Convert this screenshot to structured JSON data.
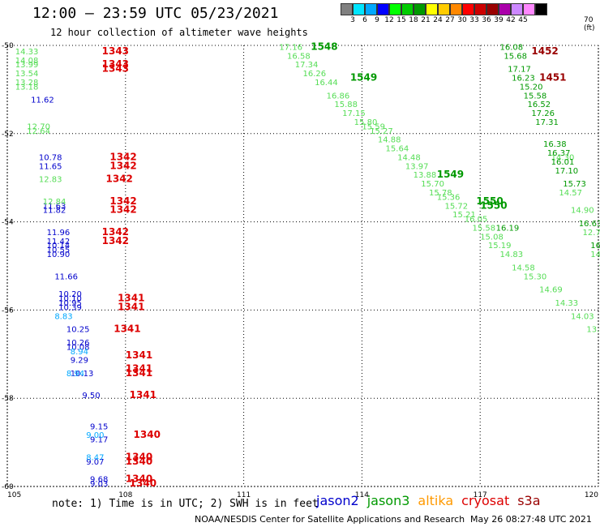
{
  "header": {
    "title": "12:00 — 23:59 UTC 05/23/2021",
    "subtitle": "12 hour collection of altimeter wave heights"
  },
  "legend": {
    "unit": "70 (ft)",
    "ticks": [
      "3",
      "6",
      "9",
      "12",
      "15",
      "18",
      "21",
      "24",
      "27",
      "30",
      "33",
      "36",
      "39",
      "42",
      "45"
    ],
    "colors": [
      "#808080",
      "#00e5ff",
      "#00a8ff",
      "#0000ff",
      "#00ff00",
      "#00cc00",
      "#009900",
      "#ffff00",
      "#ffcc00",
      "#ff8800",
      "#ff0000",
      "#cc0000",
      "#990000",
      "#aa00aa",
      "#cc88ff",
      "#ff88ff",
      "#000000"
    ]
  },
  "map": {
    "lon_labels": [
      "105",
      "108",
      "111",
      "114",
      "117",
      "120"
    ],
    "lat_labels": [
      "-50",
      "-52",
      "-54",
      "-56",
      "-58",
      "-60"
    ]
  },
  "footer": {
    "note": "note: 1) Time is in UTC; 2) SWH is in feet",
    "missions": [
      {
        "name": "jason2",
        "color": "#0000cc"
      },
      {
        "name": "jason3",
        "color": "#009900"
      },
      {
        "name": "altika",
        "color": "#ff9900"
      },
      {
        "name": "cryosat",
        "color": "#dd0000"
      },
      {
        "name": "s3a",
        "color": "#990000"
      }
    ],
    "credit": "NOAA/NESDIS Center for Satellite Applications and Research",
    "timestamp": "May 26 08:27:48 UTC 2021"
  },
  "chart_data": {
    "type": "scatter",
    "xlim": [
      105,
      120
    ],
    "ylim": [
      -60,
      -50
    ],
    "grid": true,
    "series": [
      {
        "name": "jason2",
        "color": "#0000cc",
        "points": [
          {
            "x": 105.6,
            "y": -51.3,
            "label": "11.62"
          },
          {
            "x": 105.8,
            "y": -52.6,
            "label": "10.78"
          },
          {
            "x": 105.8,
            "y": -52.8,
            "label": "11.65"
          },
          {
            "x": 105.9,
            "y": -53.7,
            "label": "11.63"
          },
          {
            "x": 105.9,
            "y": -53.8,
            "label": "11.82"
          },
          {
            "x": 106.0,
            "y": -54.3,
            "label": "11.96"
          },
          {
            "x": 106.0,
            "y": -54.5,
            "label": "11.42"
          },
          {
            "x": 106.0,
            "y": -54.6,
            "label": "10.14"
          },
          {
            "x": 106.0,
            "y": -54.7,
            "label": "10.55"
          },
          {
            "x": 106.0,
            "y": -54.8,
            "label": "10.90"
          },
          {
            "x": 106.2,
            "y": -55.3,
            "label": "11.66"
          },
          {
            "x": 106.3,
            "y": -55.7,
            "label": "10.20"
          },
          {
            "x": 106.3,
            "y": -55.8,
            "label": "10.10"
          },
          {
            "x": 106.3,
            "y": -55.9,
            "label": "10.95"
          },
          {
            "x": 106.3,
            "y": -56.0,
            "label": "10.39"
          },
          {
            "x": 106.5,
            "y": -56.5,
            "label": "10.25"
          },
          {
            "x": 106.5,
            "y": -56.8,
            "label": "10.26"
          },
          {
            "x": 106.5,
            "y": -56.9,
            "label": "10.08"
          },
          {
            "x": 106.6,
            "y": -57.2,
            "label": "9.29"
          },
          {
            "x": 106.6,
            "y": -57.5,
            "label": "10.13"
          },
          {
            "x": 106.9,
            "y": -58.0,
            "label": "9.50"
          },
          {
            "x": 107.1,
            "y": -58.7,
            "label": "9.15"
          },
          {
            "x": 107.1,
            "y": -59.0,
            "label": "9.17"
          },
          {
            "x": 107.0,
            "y": -59.5,
            "label": "9.07"
          },
          {
            "x": 107.1,
            "y": -59.9,
            "label": "9.68"
          },
          {
            "x": 107.1,
            "y": -60.0,
            "label": "9.03"
          }
        ]
      },
      {
        "name": "altika",
        "color": "#00a8ff",
        "points": [
          {
            "x": 106.2,
            "y": -56.2,
            "label": "8.83"
          },
          {
            "x": 106.6,
            "y": -57.0,
            "label": "8.94"
          },
          {
            "x": 106.5,
            "y": -57.5,
            "label": "8.94"
          },
          {
            "x": 107.0,
            "y": -58.9,
            "label": "9.00"
          },
          {
            "x": 107.0,
            "y": -59.4,
            "label": "8.47"
          }
        ]
      },
      {
        "name": "jason3-light",
        "color": "#55dd55",
        "points": [
          {
            "x": 105.2,
            "y": -50.2,
            "label": "14.33"
          },
          {
            "x": 105.2,
            "y": -50.4,
            "label": "14.08"
          },
          {
            "x": 105.2,
            "y": -50.5,
            "label": "13.99"
          },
          {
            "x": 105.2,
            "y": -50.7,
            "label": "13.54"
          },
          {
            "x": 105.2,
            "y": -50.9,
            "label": "13.28"
          },
          {
            "x": 105.2,
            "y": -51.0,
            "label": "13.18"
          },
          {
            "x": 105.5,
            "y": -51.9,
            "label": "12.70"
          },
          {
            "x": 105.5,
            "y": -52.0,
            "label": "12.64"
          },
          {
            "x": 105.8,
            "y": -53.1,
            "label": "12.83"
          },
          {
            "x": 105.9,
            "y": -53.6,
            "label": "12.84"
          },
          {
            "x": 111.9,
            "y": -50.1,
            "label": "17.16"
          },
          {
            "x": 112.1,
            "y": -50.3,
            "label": "16.58"
          },
          {
            "x": 112.3,
            "y": -50.5,
            "label": "17.34"
          },
          {
            "x": 112.5,
            "y": -50.7,
            "label": "16.26"
          },
          {
            "x": 112.8,
            "y": -50.9,
            "label": "16.44"
          },
          {
            "x": 113.1,
            "y": -51.2,
            "label": "16.86"
          },
          {
            "x": 113.3,
            "y": -51.4,
            "label": "15.88"
          },
          {
            "x": 113.5,
            "y": -51.6,
            "label": "17.15"
          },
          {
            "x": 113.8,
            "y": -51.8,
            "label": "15.80"
          },
          {
            "x": 114.0,
            "y": -51.9,
            "label": "15.59"
          },
          {
            "x": 114.2,
            "y": -52.0,
            "label": "15.27"
          },
          {
            "x": 114.4,
            "y": -52.2,
            "label": "14.88"
          },
          {
            "x": 114.6,
            "y": -52.4,
            "label": "15.64"
          },
          {
            "x": 114.9,
            "y": -52.6,
            "label": "14.48"
          },
          {
            "x": 115.1,
            "y": -52.8,
            "label": "13.97"
          },
          {
            "x": 115.3,
            "y": -53.0,
            "label": "13.88"
          },
          {
            "x": 115.5,
            "y": -53.2,
            "label": "15.70"
          },
          {
            "x": 115.7,
            "y": -53.4,
            "label": "15.78"
          },
          {
            "x": 115.9,
            "y": -53.5,
            "label": "15.36"
          },
          {
            "x": 116.1,
            "y": -53.7,
            "label": "15.72"
          },
          {
            "x": 116.3,
            "y": -53.9,
            "label": "15.21"
          },
          {
            "x": 116.6,
            "y": -54.0,
            "label": "16.05"
          },
          {
            "x": 116.8,
            "y": -54.2,
            "label": "15.58"
          },
          {
            "x": 117.0,
            "y": -54.4,
            "label": "15.08"
          },
          {
            "x": 117.2,
            "y": -54.6,
            "label": "15.19"
          },
          {
            "x": 117.5,
            "y": -54.8,
            "label": "14.83"
          },
          {
            "x": 117.8,
            "y": -55.1,
            "label": "14.58"
          },
          {
            "x": 118.1,
            "y": -55.3,
            "label": "15.30"
          },
          {
            "x": 118.5,
            "y": -55.6,
            "label": "14.69"
          },
          {
            "x": 118.9,
            "y": -55.9,
            "label": "14.33"
          },
          {
            "x": 119.3,
            "y": -56.2,
            "label": "14.03"
          },
          {
            "x": 119.7,
            "y": -56.5,
            "label": "13.98"
          },
          {
            "x": 118.8,
            "y": -52.6,
            "label": "14.30"
          },
          {
            "x": 119.0,
            "y": -53.4,
            "label": "14.57"
          },
          {
            "x": 119.3,
            "y": -53.8,
            "label": "14.90"
          },
          {
            "x": 119.6,
            "y": -54.3,
            "label": "12.78"
          },
          {
            "x": 119.8,
            "y": -54.8,
            "label": "14.1"
          },
          {
            "x": 120.0,
            "y": -55.1,
            "label": "14."
          }
        ]
      },
      {
        "name": "jason3",
        "color": "#009900",
        "points": [
          {
            "x": 117.5,
            "y": -50.1,
            "label": "16.08"
          },
          {
            "x": 117.6,
            "y": -50.3,
            "label": "15.68"
          },
          {
            "x": 117.7,
            "y": -50.6,
            "label": "17.17"
          },
          {
            "x": 117.8,
            "y": -50.8,
            "label": "16.23"
          },
          {
            "x": 118.0,
            "y": -51.0,
            "label": "15.20"
          },
          {
            "x": 118.1,
            "y": -51.2,
            "label": "15.58"
          },
          {
            "x": 118.2,
            "y": -51.4,
            "label": "16.52"
          },
          {
            "x": 118.3,
            "y": -51.6,
            "label": "17.26"
          },
          {
            "x": 118.4,
            "y": -51.8,
            "label": "17.31"
          },
          {
            "x": 118.6,
            "y": -52.3,
            "label": "16.38"
          },
          {
            "x": 118.7,
            "y": -52.5,
            "label": "16.37"
          },
          {
            "x": 118.8,
            "y": -52.7,
            "label": "16.01"
          },
          {
            "x": 118.9,
            "y": -52.9,
            "label": "17.10"
          },
          {
            "x": 119.1,
            "y": -53.2,
            "label": "15.73"
          },
          {
            "x": 119.5,
            "y": -54.1,
            "label": "16.63"
          },
          {
            "x": 119.8,
            "y": -54.6,
            "label": "16.28"
          },
          {
            "x": 117.4,
            "y": -54.2,
            "label": "16.19"
          }
        ]
      }
    ],
    "annotations": [
      {
        "x": 107.4,
        "y": -50.2,
        "text": "1343",
        "color": "#dd0000"
      },
      {
        "x": 107.4,
        "y": -50.5,
        "text": "1343",
        "color": "#dd0000"
      },
      {
        "x": 107.4,
        "y": -50.6,
        "text": "1343",
        "color": "#dd0000"
      },
      {
        "x": 107.6,
        "y": -52.6,
        "text": "1342",
        "color": "#dd0000"
      },
      {
        "x": 107.6,
        "y": -52.8,
        "text": "1342",
        "color": "#dd0000"
      },
      {
        "x": 107.5,
        "y": -53.1,
        "text": "1342",
        "color": "#dd0000"
      },
      {
        "x": 107.6,
        "y": -53.6,
        "text": "1342",
        "color": "#dd0000"
      },
      {
        "x": 107.6,
        "y": -53.8,
        "text": "1342",
        "color": "#dd0000"
      },
      {
        "x": 107.4,
        "y": -54.3,
        "text": "1342",
        "color": "#dd0000"
      },
      {
        "x": 107.4,
        "y": -54.5,
        "text": "1342",
        "color": "#dd0000"
      },
      {
        "x": 107.8,
        "y": -55.8,
        "text": "1341",
        "color": "#dd0000"
      },
      {
        "x": 107.8,
        "y": -56.0,
        "text": "1341",
        "color": "#dd0000"
      },
      {
        "x": 107.7,
        "y": -56.5,
        "text": "1341",
        "color": "#dd0000"
      },
      {
        "x": 108.0,
        "y": -57.1,
        "text": "1341",
        "color": "#dd0000"
      },
      {
        "x": 108.0,
        "y": -57.4,
        "text": "1341",
        "color": "#dd0000"
      },
      {
        "x": 108.0,
        "y": -57.5,
        "text": "1341",
        "color": "#dd0000"
      },
      {
        "x": 108.1,
        "y": -58.0,
        "text": "1341",
        "color": "#dd0000"
      },
      {
        "x": 108.2,
        "y": -58.9,
        "text": "1340",
        "color": "#dd0000"
      },
      {
        "x": 108.0,
        "y": -59.4,
        "text": "1340",
        "color": "#dd0000"
      },
      {
        "x": 108.0,
        "y": -59.5,
        "text": "1340",
        "color": "#dd0000"
      },
      {
        "x": 108.0,
        "y": -59.9,
        "text": "1340",
        "color": "#dd0000"
      },
      {
        "x": 108.1,
        "y": -60.0,
        "text": "1340",
        "color": "#dd0000"
      },
      {
        "x": 112.7,
        "y": -50.1,
        "text": "1548",
        "color": "#009900"
      },
      {
        "x": 113.7,
        "y": -50.8,
        "text": "1549",
        "color": "#009900"
      },
      {
        "x": 115.9,
        "y": -53.0,
        "text": "1549",
        "color": "#009900"
      },
      {
        "x": 116.9,
        "y": -53.6,
        "text": "1550",
        "color": "#009900"
      },
      {
        "x": 117.0,
        "y": -53.7,
        "text": "1550",
        "color": "#009900"
      },
      {
        "x": 118.3,
        "y": -50.2,
        "text": "1452",
        "color": "#990000"
      },
      {
        "x": 118.5,
        "y": -50.8,
        "text": "1451",
        "color": "#990000"
      }
    ]
  }
}
